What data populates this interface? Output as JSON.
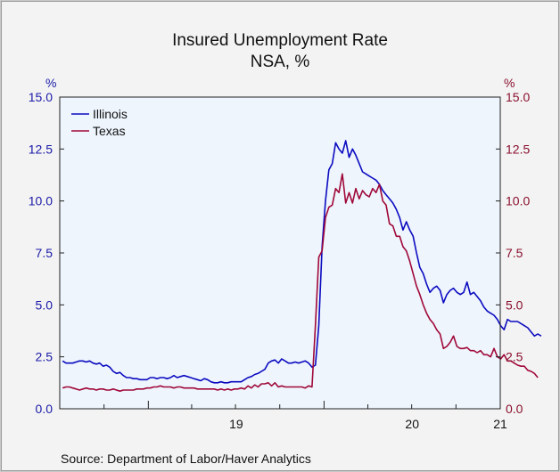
{
  "chart_data": {
    "type": "line",
    "title": "Insured Unemployment Rate",
    "subtitle": "NSA, %",
    "ylabel_left": "%",
    "ylabel_right": "%",
    "ylim": [
      0,
      15
    ],
    "yticks": [
      "0.0",
      "2.5",
      "5.0",
      "7.5",
      "10.0",
      "12.5",
      "15.0"
    ],
    "xticks": [
      "19",
      "20",
      "21"
    ],
    "x_start": "2018-07-07",
    "x_step_days": 7,
    "legend_position": "top-left",
    "grid": false,
    "source": "Source:  Department of Labor/Haver Analytics",
    "colors": {
      "illinois": "#0b0bc0",
      "texas": "#a00838",
      "left_axis": "#1a1aa8",
      "right_axis": "#8a0f2e",
      "plot_bg": "#eef5fd"
    },
    "series": [
      {
        "name": "Illinois",
        "values": [
          2.3,
          2.2,
          2.2,
          2.2,
          2.25,
          2.3,
          2.3,
          2.25,
          2.3,
          2.2,
          2.15,
          2.2,
          2.05,
          2.1,
          2.0,
          1.8,
          1.7,
          1.75,
          1.6,
          1.5,
          1.5,
          1.45,
          1.45,
          1.4,
          1.4,
          1.4,
          1.5,
          1.5,
          1.45,
          1.5,
          1.5,
          1.45,
          1.5,
          1.6,
          1.5,
          1.55,
          1.6,
          1.55,
          1.5,
          1.45,
          1.4,
          1.35,
          1.45,
          1.4,
          1.3,
          1.25,
          1.25,
          1.3,
          1.25,
          1.25,
          1.3,
          1.3,
          1.3,
          1.3,
          1.4,
          1.5,
          1.55,
          1.65,
          1.7,
          1.8,
          1.9,
          2.2,
          2.3,
          2.35,
          2.2,
          2.4,
          2.3,
          2.2,
          2.2,
          2.25,
          2.2,
          2.25,
          2.3,
          2.2,
          2.0,
          2.1,
          4.0,
          7.8,
          10.0,
          11.5,
          11.8,
          12.8,
          12.5,
          12.3,
          12.9,
          12.1,
          12.5,
          12.2,
          11.8,
          11.4,
          11.3,
          11.2,
          11.1,
          11.0,
          10.8,
          10.5,
          10.3,
          10.1,
          9.9,
          9.6,
          9.2,
          8.6,
          9.0,
          8.6,
          8.3,
          7.5,
          6.8,
          6.5,
          6.0,
          5.6,
          5.8,
          5.9,
          5.7,
          5.1,
          5.5,
          5.7,
          5.8,
          5.6,
          5.5,
          5.6,
          6.1,
          5.5,
          5.6,
          5.4,
          5.2,
          4.9,
          4.7,
          4.6,
          4.5,
          4.3,
          4.0,
          3.8,
          4.3,
          4.2,
          4.2,
          4.2,
          4.1,
          4.0,
          3.9,
          3.7,
          3.5,
          3.6,
          3.5
        ]
      },
      {
        "name": "Texas",
        "values": [
          1.0,
          1.05,
          1.05,
          1.0,
          0.95,
          0.9,
          0.95,
          1.0,
          0.95,
          0.95,
          0.9,
          0.95,
          0.95,
          0.9,
          0.9,
          0.95,
          0.9,
          0.85,
          0.9,
          0.9,
          0.9,
          0.9,
          0.95,
          0.95,
          0.95,
          1.0,
          1.0,
          1.05,
          1.05,
          1.1,
          1.05,
          1.05,
          1.05,
          1.0,
          1.05,
          1.05,
          1.0,
          1.0,
          1.0,
          1.0,
          0.95,
          0.95,
          0.95,
          0.95,
          0.95,
          0.95,
          0.9,
          0.95,
          0.9,
          0.95,
          0.9,
          0.95,
          0.95,
          1.0,
          0.95,
          1.1,
          1.0,
          1.15,
          1.05,
          1.2,
          1.2,
          1.25,
          1.1,
          1.25,
          1.05,
          1.1,
          1.05,
          1.05,
          1.05,
          1.05,
          1.05,
          1.05,
          1.0,
          1.1,
          1.05,
          4.0,
          7.3,
          7.6,
          9.2,
          9.7,
          9.8,
          10.6,
          10.4,
          11.3,
          9.9,
          10.4,
          9.9,
          10.6,
          10.1,
          10.5,
          10.3,
          10.2,
          10.6,
          10.4,
          10.8,
          10.0,
          9.8,
          8.9,
          8.8,
          8.3,
          8.3,
          7.8,
          7.6,
          7.1,
          6.5,
          5.9,
          5.5,
          5.0,
          4.6,
          4.3,
          4.1,
          3.8,
          3.6,
          2.9,
          3.0,
          3.2,
          3.5,
          3.0,
          2.9,
          2.9,
          2.95,
          2.8,
          2.8,
          2.7,
          2.8,
          2.6,
          2.6,
          2.5,
          2.9,
          2.5,
          2.4,
          2.6,
          2.3,
          2.3,
          2.2,
          2.1,
          2.05,
          2.05,
          1.85,
          1.8,
          1.7,
          1.5
        ]
      }
    ]
  }
}
